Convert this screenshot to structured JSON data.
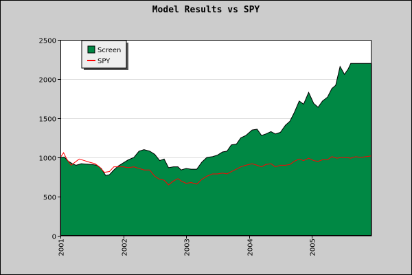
{
  "chart_data": {
    "type": "area",
    "title": "Model Results vs SPY",
    "xlabel": "",
    "ylabel": "",
    "ylim": [
      0,
      2500
    ],
    "xlim": [
      2001.0,
      2005.95
    ],
    "yticks": [
      0,
      500,
      1000,
      1500,
      2000,
      2500
    ],
    "xtick_labels": [
      "2001",
      "2002",
      "2003",
      "2004",
      "2005"
    ],
    "xticks": [
      2001.0,
      2002.0,
      2003.0,
      2004.0,
      2005.0
    ],
    "grid": "horizontal",
    "legend": "top-left",
    "colors": {
      "screen": "#008844",
      "spy": "#ff0000",
      "plot_bg": "#ffffff",
      "frame_bg": "#cccccc"
    },
    "series": [
      {
        "name": "Screen",
        "style": "area",
        "points": [
          [
            2001.0,
            1000
          ],
          [
            2001.06,
            1005
          ],
          [
            2001.13,
            950
          ],
          [
            2001.19,
            920
          ],
          [
            2001.25,
            900
          ],
          [
            2001.33,
            920
          ],
          [
            2001.42,
            915
          ],
          [
            2001.5,
            910
          ],
          [
            2001.58,
            900
          ],
          [
            2001.65,
            860
          ],
          [
            2001.72,
            770
          ],
          [
            2001.78,
            780
          ],
          [
            2001.85,
            840
          ],
          [
            2001.92,
            890
          ],
          [
            2002.0,
            930
          ],
          [
            2002.08,
            970
          ],
          [
            2002.17,
            1000
          ],
          [
            2002.25,
            1080
          ],
          [
            2002.33,
            1100
          ],
          [
            2002.42,
            1080
          ],
          [
            2002.5,
            1040
          ],
          [
            2002.58,
            960
          ],
          [
            2002.65,
            980
          ],
          [
            2002.72,
            870
          ],
          [
            2002.8,
            880
          ],
          [
            2002.87,
            880
          ],
          [
            2002.92,
            840
          ],
          [
            2003.0,
            860
          ],
          [
            2003.08,
            850
          ],
          [
            2003.17,
            850
          ],
          [
            2003.25,
            940
          ],
          [
            2003.33,
            1000
          ],
          [
            2003.42,
            1010
          ],
          [
            2003.5,
            1030
          ],
          [
            2003.58,
            1070
          ],
          [
            2003.65,
            1080
          ],
          [
            2003.72,
            1160
          ],
          [
            2003.8,
            1170
          ],
          [
            2003.87,
            1250
          ],
          [
            2003.95,
            1280
          ],
          [
            2004.05,
            1350
          ],
          [
            2004.13,
            1360
          ],
          [
            2004.2,
            1280
          ],
          [
            2004.27,
            1300
          ],
          [
            2004.35,
            1330
          ],
          [
            2004.42,
            1300
          ],
          [
            2004.5,
            1320
          ],
          [
            2004.58,
            1410
          ],
          [
            2004.65,
            1460
          ],
          [
            2004.72,
            1570
          ],
          [
            2004.8,
            1720
          ],
          [
            2004.87,
            1680
          ],
          [
            2004.95,
            1830
          ],
          [
            2005.03,
            1690
          ],
          [
            2005.1,
            1640
          ],
          [
            2005.17,
            1720
          ],
          [
            2005.25,
            1770
          ],
          [
            2005.32,
            1880
          ],
          [
            2005.38,
            1920
          ],
          [
            2005.45,
            2160
          ],
          [
            2005.52,
            2060
          ],
          [
            2005.58,
            2130
          ],
          [
            2005.62,
            2200
          ],
          [
            2005.95,
            2200
          ]
        ]
      },
      {
        "name": "SPY",
        "style": "line",
        "points": [
          [
            2001.0,
            1000
          ],
          [
            2001.05,
            1060
          ],
          [
            2001.1,
            980
          ],
          [
            2001.17,
            900
          ],
          [
            2001.25,
            950
          ],
          [
            2001.3,
            980
          ],
          [
            2001.38,
            960
          ],
          [
            2001.46,
            940
          ],
          [
            2001.55,
            920
          ],
          [
            2001.62,
            880
          ],
          [
            2001.7,
            810
          ],
          [
            2001.78,
            820
          ],
          [
            2001.85,
            880
          ],
          [
            2001.92,
            880
          ],
          [
            2002.0,
            880
          ],
          [
            2002.08,
            870
          ],
          [
            2002.17,
            880
          ],
          [
            2002.25,
            860
          ],
          [
            2002.33,
            840
          ],
          [
            2002.42,
            840
          ],
          [
            2002.5,
            760
          ],
          [
            2002.58,
            720
          ],
          [
            2002.65,
            710
          ],
          [
            2002.72,
            650
          ],
          [
            2002.8,
            700
          ],
          [
            2002.87,
            730
          ],
          [
            2002.92,
            700
          ],
          [
            2003.0,
            670
          ],
          [
            2003.08,
            680
          ],
          [
            2003.17,
            660
          ],
          [
            2003.25,
            720
          ],
          [
            2003.33,
            760
          ],
          [
            2003.42,
            790
          ],
          [
            2003.5,
            790
          ],
          [
            2003.58,
            800
          ],
          [
            2003.65,
            790
          ],
          [
            2003.72,
            820
          ],
          [
            2003.8,
            850
          ],
          [
            2003.87,
            880
          ],
          [
            2003.95,
            900
          ],
          [
            2004.05,
            920
          ],
          [
            2004.13,
            900
          ],
          [
            2004.2,
            880
          ],
          [
            2004.27,
            910
          ],
          [
            2004.35,
            920
          ],
          [
            2004.42,
            880
          ],
          [
            2004.5,
            900
          ],
          [
            2004.58,
            900
          ],
          [
            2004.65,
            910
          ],
          [
            2004.72,
            950
          ],
          [
            2004.8,
            980
          ],
          [
            2004.87,
            960
          ],
          [
            2004.95,
            990
          ],
          [
            2005.03,
            960
          ],
          [
            2005.1,
            950
          ],
          [
            2005.17,
            970
          ],
          [
            2005.25,
            970
          ],
          [
            2005.32,
            1010
          ],
          [
            2005.4,
            990
          ],
          [
            2005.48,
            1000
          ],
          [
            2005.55,
            1000
          ],
          [
            2005.62,
            990
          ],
          [
            2005.7,
            1010
          ],
          [
            2005.78,
            1000
          ],
          [
            2005.86,
            1010
          ],
          [
            2005.95,
            1020
          ]
        ]
      }
    ]
  }
}
